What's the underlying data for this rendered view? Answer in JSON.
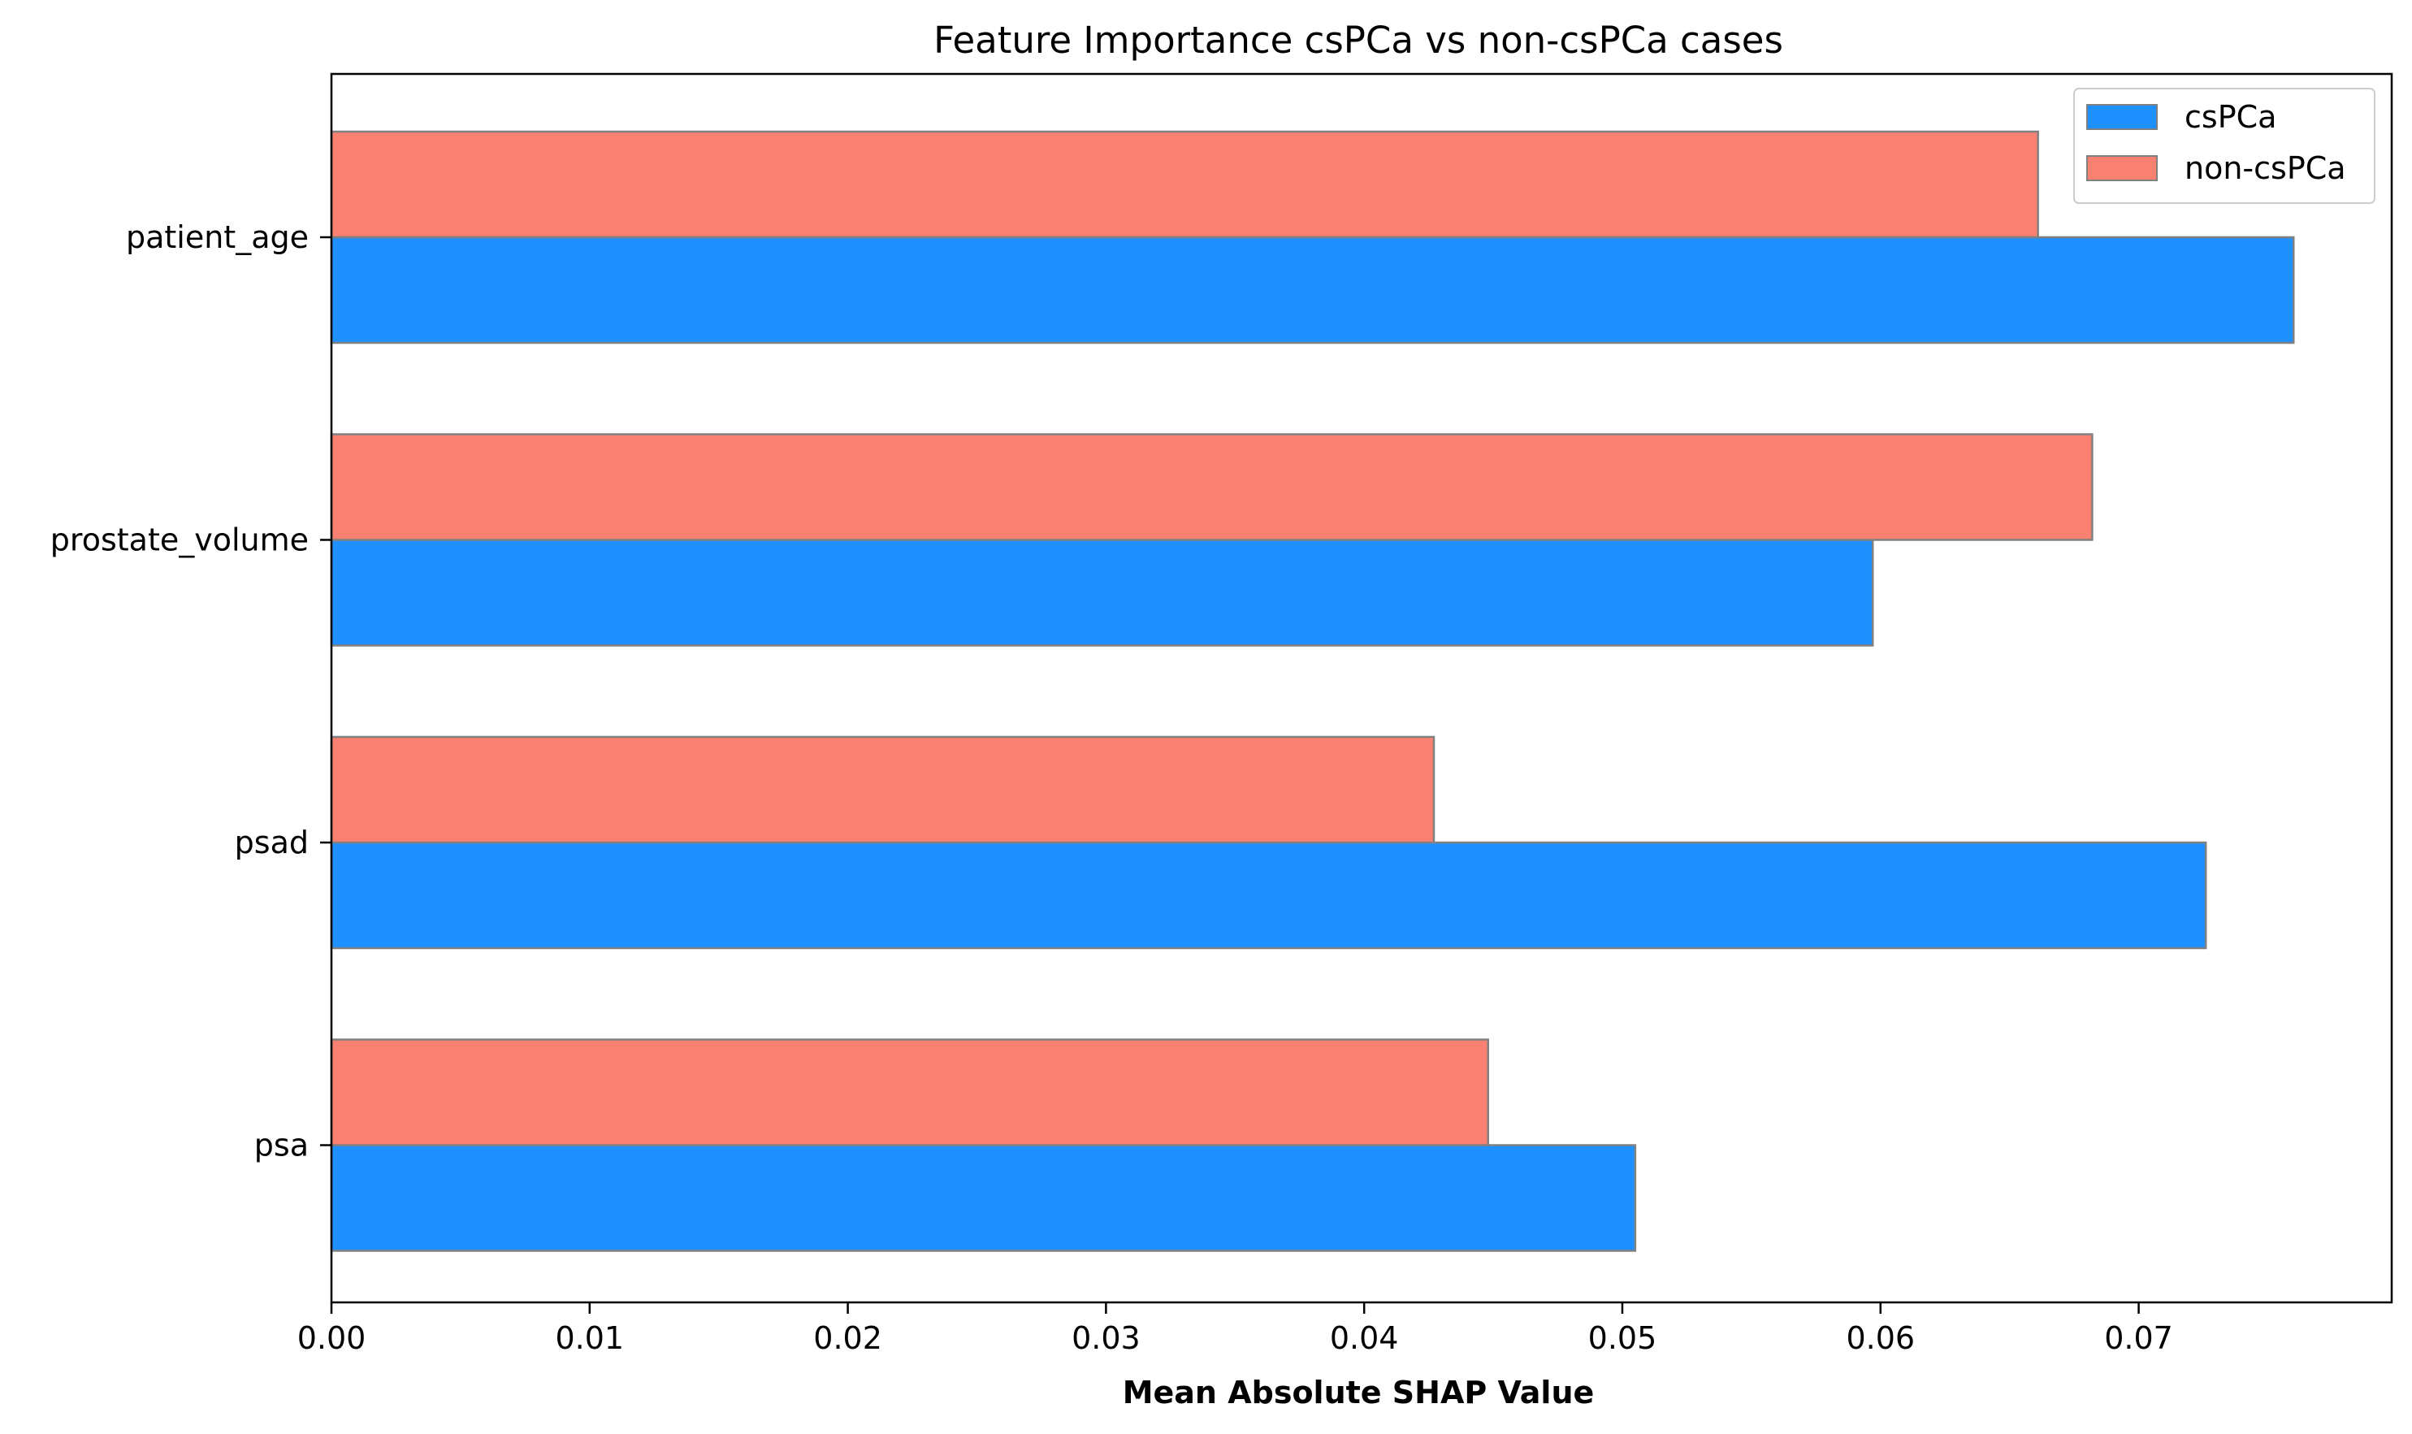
{
  "chart_data": {
    "type": "bar",
    "orientation": "horizontal",
    "title": "Feature Importance csPCa vs non-csPCa cases",
    "xlabel": "Mean Absolute SHAP Value",
    "ylabel": "",
    "categories": [
      "patient_age",
      "prostate_volume",
      "psad",
      "psa"
    ],
    "series": [
      {
        "name": "csPCa",
        "color": "#1E90FF",
        "values": [
          0.076,
          0.0597,
          0.0726,
          0.0505
        ]
      },
      {
        "name": "non-csPCa",
        "color": "#FA8072",
        "values": [
          0.0661,
          0.0682,
          0.0427,
          0.0448
        ]
      }
    ],
    "xlim": [
      0,
      0.0798
    ],
    "xticks": [
      "0.00",
      "0.01",
      "0.02",
      "0.03",
      "0.04",
      "0.05",
      "0.06",
      "0.07"
    ],
    "bar_edge_color": "#808080",
    "grid": false,
    "legend_position": "top-right"
  }
}
